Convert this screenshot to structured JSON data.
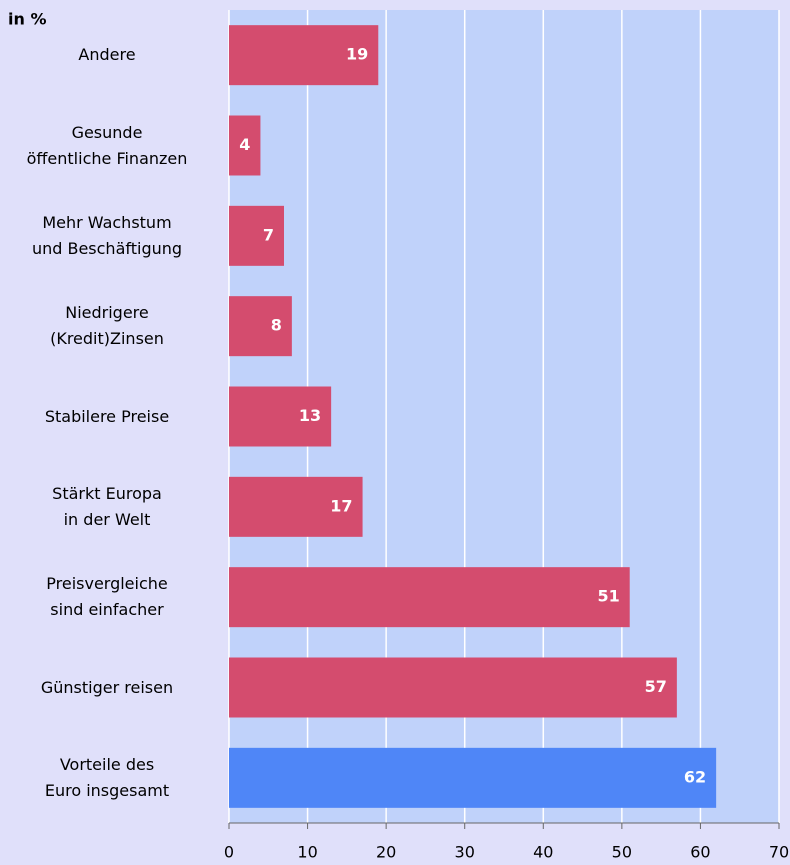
{
  "chart_data": {
    "type": "barh",
    "axis_label": "in %",
    "categories": [
      "Andere",
      "Gesunde\nöffentliche Finanzen",
      "Mehr Wachstum\nund Beschäftigung",
      "Niedrigere\n(Kredit)Zinsen",
      "Stabilere Preise",
      "Stärkt Europa\nin der Welt",
      "Preisvergleiche\nsind einfacher",
      "Günstiger reisen",
      "Vorteile des\nEuro insgesamt"
    ],
    "values": [
      19,
      4,
      7,
      8,
      13,
      17,
      51,
      57,
      62
    ],
    "colors": [
      "#d44c6e",
      "#d44c6e",
      "#d44c6e",
      "#d44c6e",
      "#d44c6e",
      "#d44c6e",
      "#d44c6e",
      "#d44c6e",
      "#4f86f7"
    ],
    "xlim": [
      0,
      70
    ],
    "xticks": [
      0,
      10,
      20,
      30,
      40,
      50,
      60,
      70
    ],
    "grid": true
  }
}
